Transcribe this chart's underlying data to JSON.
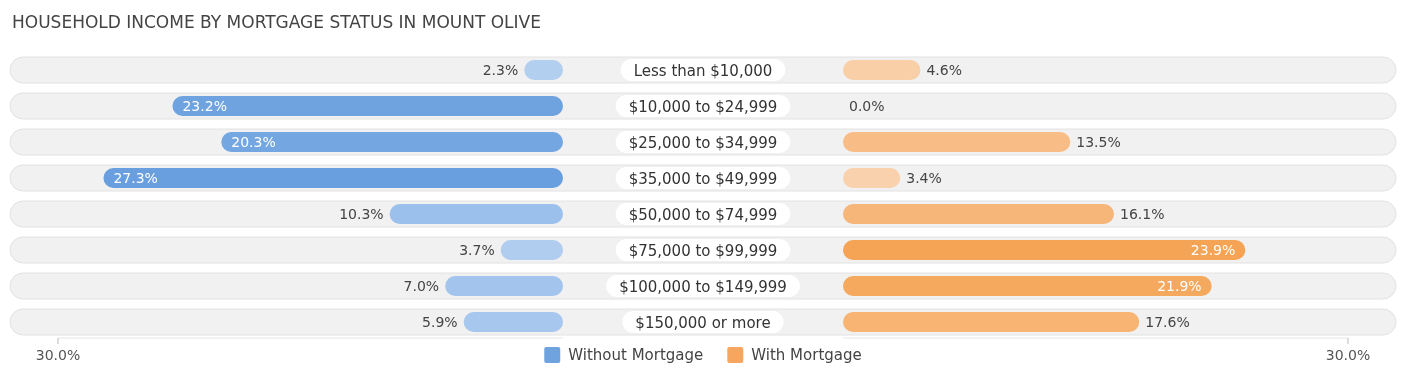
{
  "chart_data": [
    {
      "type": "bar",
      "orientation": "horizontal",
      "title": "HOUSEHOLD INCOME BY MORTGAGE STATUS IN MOUNT OLIVE",
      "categories": [
        "Less than $10,000",
        "$10,000 to $24,999",
        "$25,000 to $34,999",
        "$35,000 to $49,999",
        "$50,000 to $74,999",
        "$75,000 to $99,999",
        "$100,000 to $149,999",
        "$150,000 or more"
      ],
      "series": [
        {
          "name": "Without Mortgage",
          "color": "#6fa3e0",
          "colors": [
            "#b2cff0",
            "#6fa3e0",
            "#74a6e1",
            "#6a9fdf",
            "#9cc0ec",
            "#b0cdf0",
            "#a2c4ed",
            "#a8c7ee"
          ],
          "values": [
            2.3,
            23.2,
            20.3,
            27.3,
            10.3,
            3.7,
            7.0,
            5.9
          ],
          "value_labels": [
            "2.3%",
            "23.2%",
            "20.3%",
            "27.3%",
            "10.3%",
            "3.7%",
            "7.0%",
            "5.9%"
          ]
        }
      ],
      "xlim": [
        30,
        0
      ],
      "xticks": [
        {
          "value": 30,
          "label": "30.0%"
        }
      ],
      "legend": "bottom"
    },
    {
      "type": "bar",
      "orientation": "horizontal",
      "categories": [
        "Less than $10,000",
        "$10,000 to $24,999",
        "$25,000 to $34,999",
        "$35,000 to $49,999",
        "$50,000 to $74,999",
        "$75,000 to $99,999",
        "$100,000 to $149,999",
        "$150,000 or more"
      ],
      "series": [
        {
          "name": "With Mortgage",
          "color": "#f6a65f",
          "colors": [
            "#f9cfa8",
            "#fad9bc",
            "#f8bd86",
            "#f9d1ac",
            "#f7b679",
            "#f5a456",
            "#f5a95f",
            "#f7b472"
          ],
          "values": [
            4.6,
            0.0,
            13.5,
            3.4,
            16.1,
            23.9,
            21.9,
            17.6
          ],
          "value_labels": [
            "4.6%",
            "0.0%",
            "13.5%",
            "3.4%",
            "16.1%",
            "23.9%",
            "21.9%",
            "17.6%"
          ]
        }
      ],
      "xlim": [
        0,
        30
      ],
      "xticks": [
        {
          "value": 30,
          "label": "30.0%"
        }
      ],
      "tick_labels": "x",
      "legend": "bottom"
    }
  ]
}
